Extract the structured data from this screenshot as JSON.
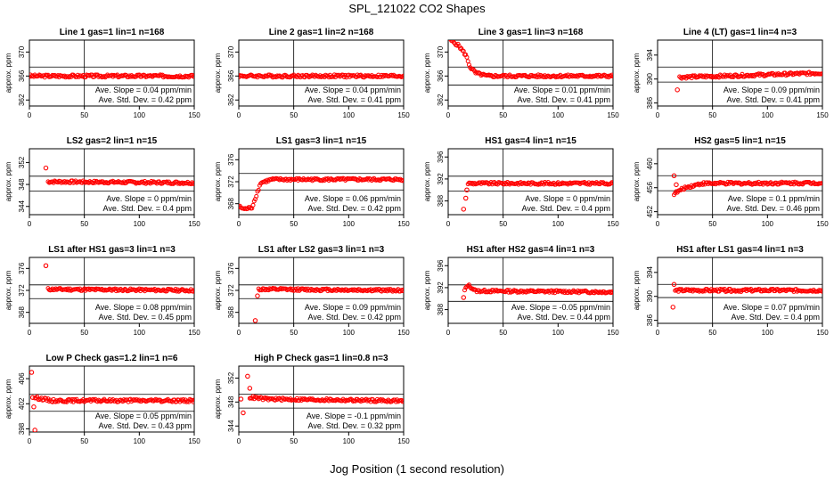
{
  "title": "SPL_121022  CO2 Shapes",
  "xlabel": "Jog Position (1 second resolution)",
  "ylabel": "approx. ppm",
  "colors": {
    "points": "#ff0000",
    "axes": "#000000"
  },
  "chart_data": [
    {
      "type": "scatter",
      "title": "Line 1 gas=1 lin=1 n=168",
      "xlim": [
        0,
        150
      ],
      "ylim": [
        361,
        372
      ],
      "yticks": [
        362,
        366,
        370
      ],
      "xticks": [
        0,
        50,
        100,
        150
      ],
      "hlines": [
        367.5,
        364.5
      ],
      "vline": 50,
      "profile": [
        [
          0,
          366
        ],
        [
          150,
          366
        ]
      ],
      "start": 0,
      "slope": "Ave. Slope = 0.04  ppm/min",
      "stddev": "Ave. Std. Dev. = 0.42  ppm"
    },
    {
      "type": "scatter",
      "title": "Line 2 gas=1 lin=2 n=168",
      "xlim": [
        0,
        150
      ],
      "ylim": [
        361,
        372
      ],
      "yticks": [
        362,
        366,
        370
      ],
      "xticks": [
        0,
        50,
        100,
        150
      ],
      "hlines": [
        367.5,
        364.5
      ],
      "vline": 50,
      "profile": [
        [
          0,
          366
        ],
        [
          150,
          366
        ]
      ],
      "start": 0,
      "slope": "Ave. Slope = 0.04  ppm/min",
      "stddev": "Ave. Std. Dev. = 0.41  ppm"
    },
    {
      "type": "scatter",
      "title": "Line 3 gas=1 lin=3 n=168",
      "xlim": [
        0,
        150
      ],
      "ylim": [
        361,
        372
      ],
      "yticks": [
        362,
        366,
        370
      ],
      "xticks": [
        0,
        50,
        100,
        150
      ],
      "hlines": [
        367.5,
        364.5
      ],
      "vline": 50,
      "profile": [
        [
          2,
          372
        ],
        [
          10,
          371
        ],
        [
          16,
          369.5
        ],
        [
          20,
          367.5
        ],
        [
          25,
          366.5
        ],
        [
          35,
          366
        ],
        [
          150,
          366
        ]
      ],
      "start": 2,
      "slope": "Ave. Slope = 0.01  ppm/min",
      "stddev": "Ave. Std. Dev. = 0.41  ppm"
    },
    {
      "type": "scatter",
      "title": "Line 4 (LT) gas=1 lin=4 n=3",
      "xlim": [
        0,
        150
      ],
      "ylim": [
        385.5,
        396.5
      ],
      "yticks": [
        386,
        390,
        394
      ],
      "xticks": [
        0,
        50,
        100,
        150
      ],
      "hlines": [
        392,
        389.5
      ],
      "vline": 50,
      "profile": [
        [
          20,
          390.3
        ],
        [
          60,
          390.5
        ],
        [
          150,
          391
        ]
      ],
      "start": 20,
      "outliers": [
        [
          18,
          388.2
        ]
      ],
      "slope": "Ave. Slope = 0.09  ppm/min",
      "stddev": "Ave. Std. Dev. = 0.41  ppm"
    },
    {
      "type": "scatter",
      "title": "LS2 gas=2 lin=1 n=15",
      "xlim": [
        0,
        150
      ],
      "ylim": [
        342.5,
        354.5
      ],
      "yticks": [
        344,
        348,
        352
      ],
      "xticks": [
        0,
        50,
        100,
        150
      ],
      "hlines": [
        349.5,
        346.8
      ],
      "vline": 50,
      "profile": [
        [
          17,
          348.5
        ],
        [
          150,
          348.3
        ]
      ],
      "start": 17,
      "outliers": [
        [
          15,
          351
        ]
      ],
      "slope": "Ave. Slope = 0  ppm/min",
      "stddev": "Ave. Std. Dev. = 0.4  ppm"
    },
    {
      "type": "scatter",
      "title": "LS1 gas=3 lin=1 n=15",
      "xlim": [
        0,
        150
      ],
      "ylim": [
        366,
        378
      ],
      "yticks": [
        368,
        372,
        376
      ],
      "xticks": [
        0,
        50,
        100,
        150
      ],
      "hlines": [
        373.5,
        370.5
      ],
      "vline": 50,
      "profile": [
        [
          0,
          367.5
        ],
        [
          5,
          367
        ],
        [
          12,
          367.3
        ],
        [
          15,
          369
        ],
        [
          20,
          371.8
        ],
        [
          30,
          372.4
        ],
        [
          150,
          372.4
        ]
      ],
      "start": 0,
      "slope": "Ave. Slope = 0.06  ppm/min",
      "stddev": "Ave. Std. Dev. = 0.42  ppm"
    },
    {
      "type": "scatter",
      "title": "HS1 gas=4 lin=1 n=15",
      "xlim": [
        0,
        150
      ],
      "ylim": [
        385.5,
        397.5
      ],
      "yticks": [
        388,
        392,
        396
      ],
      "xticks": [
        0,
        50,
        100,
        150
      ],
      "hlines": [
        392.5,
        389.8
      ],
      "vline": 50,
      "profile": [
        [
          18,
          391.2
        ],
        [
          150,
          391.2
        ]
      ],
      "start": 18,
      "outliers": [
        [
          14,
          386.5
        ],
        [
          16,
          388.5
        ],
        [
          17,
          390
        ]
      ],
      "slope": "Ave. Slope = 0  ppm/min",
      "stddev": "Ave. Std. Dev. = 0.4  ppm"
    },
    {
      "type": "scatter",
      "title": "HS2 gas=5 lin=1 n=15",
      "xlim": [
        0,
        150
      ],
      "ylim": [
        451.5,
        462.5
      ],
      "yticks": [
        452,
        456,
        460
      ],
      "xticks": [
        0,
        50,
        100,
        150
      ],
      "hlines": [
        458,
        455.5
      ],
      "vline": 50,
      "profile": [
        [
          15,
          455
        ],
        [
          25,
          456
        ],
        [
          40,
          456.7
        ],
        [
          150,
          456.8
        ]
      ],
      "start": 15,
      "outliers": [
        [
          15,
          458
        ],
        [
          17,
          456.5
        ]
      ],
      "slope": "Ave. Slope = 0.1  ppm/min",
      "stddev": "Ave. Std. Dev. = 0.46  ppm"
    },
    {
      "type": "scatter",
      "title": "LS1 after HS1 gas=3 lin=1 n=3",
      "xlim": [
        0,
        150
      ],
      "ylim": [
        366,
        378
      ],
      "yticks": [
        368,
        372,
        376
      ],
      "xticks": [
        0,
        50,
        100,
        150
      ],
      "hlines": [
        373,
        370.5
      ],
      "vline": 50,
      "profile": [
        [
          17,
          372.2
        ],
        [
          150,
          372
        ]
      ],
      "start": 17,
      "outliers": [
        [
          15,
          376.5
        ]
      ],
      "slope": "Ave. Slope = 0.08  ppm/min",
      "stddev": "Ave. Std. Dev. = 0.45  ppm"
    },
    {
      "type": "scatter",
      "title": "LS1 after LS2 gas=3 lin=1 n=3",
      "xlim": [
        0,
        150
      ],
      "ylim": [
        366,
        378
      ],
      "yticks": [
        368,
        372,
        376
      ],
      "xticks": [
        0,
        50,
        100,
        150
      ],
      "hlines": [
        373,
        370.5
      ],
      "vline": 50,
      "profile": [
        [
          18,
          372.2
        ],
        [
          150,
          372
        ]
      ],
      "start": 18,
      "outliers": [
        [
          15,
          366.5
        ],
        [
          17,
          371
        ]
      ],
      "slope": "Ave. Slope = 0.09  ppm/min",
      "stddev": "Ave. Std. Dev. = 0.42  ppm"
    },
    {
      "type": "scatter",
      "title": "HS1 after HS2 gas=4 lin=1 n=3",
      "xlim": [
        0,
        150
      ],
      "ylim": [
        385.5,
        397.5
      ],
      "yticks": [
        388,
        392,
        396
      ],
      "xticks": [
        0,
        50,
        100,
        150
      ],
      "hlines": [
        392.5,
        389.5
      ],
      "vline": 50,
      "profile": [
        [
          15,
          391.5
        ],
        [
          18,
          392.5
        ],
        [
          25,
          391.4
        ],
        [
          150,
          391.2
        ]
      ],
      "start": 15,
      "outliers": [
        [
          14,
          390.2
        ]
      ],
      "slope": "Ave. Slope = -0.05  ppm/min",
      "stddev": "Ave. Std. Dev. = 0.44  ppm"
    },
    {
      "type": "scatter",
      "title": "HS1 after LS1 gas=4 lin=1 n=3",
      "xlim": [
        0,
        150
      ],
      "ylim": [
        385.5,
        396.5
      ],
      "yticks": [
        386,
        390,
        394
      ],
      "xticks": [
        0,
        50,
        100,
        150
      ],
      "hlines": [
        392,
        389.8
      ],
      "vline": 50,
      "profile": [
        [
          16,
          391
        ],
        [
          150,
          391
        ]
      ],
      "start": 16,
      "outliers": [
        [
          14,
          388.2
        ],
        [
          15,
          392
        ]
      ],
      "slope": "Ave. Slope = 0.07  ppm/min",
      "stddev": "Ave. Std. Dev. = 0.4  ppm"
    },
    {
      "type": "scatter",
      "title": "Low P Check gas=1.2 lin=1 n=6",
      "xlim": [
        0,
        150
      ],
      "ylim": [
        397.5,
        408
      ],
      "yticks": [
        398,
        402,
        406
      ],
      "xticks": [
        0,
        50,
        100,
        150
      ],
      "hlines": [
        403.5,
        400.8
      ],
      "vline": 50,
      "profile": [
        [
          5,
          403
        ],
        [
          20,
          402.5
        ],
        [
          150,
          402.5
        ]
      ],
      "start": 5,
      "outliers": [
        [
          2,
          407
        ],
        [
          3,
          403
        ],
        [
          4,
          401.5
        ],
        [
          5,
          397.8
        ]
      ],
      "slope": "Ave. Slope = 0.05  ppm/min",
      "stddev": "Ave. Std. Dev. = 0.43  ppm"
    },
    {
      "type": "scatter",
      "title": "High P Check gas=1 lin=0.8 n=3",
      "xlim": [
        0,
        150
      ],
      "ylim": [
        343,
        354
      ],
      "yticks": [
        344,
        348,
        352
      ],
      "xticks": [
        0,
        50,
        100,
        150
      ],
      "hlines": [
        349.3,
        347
      ],
      "vline": 50,
      "profile": [
        [
          10,
          348.8
        ],
        [
          25,
          348.5
        ],
        [
          150,
          348.2
        ]
      ],
      "start": 10,
      "outliers": [
        [
          2,
          348.5
        ],
        [
          4,
          346.2
        ],
        [
          8,
          352.3
        ],
        [
          10,
          350.3
        ]
      ],
      "slope": "Ave. Slope = -0.1  ppm/min",
      "stddev": "Ave. Std. Dev. = 0.32  ppm"
    }
  ]
}
